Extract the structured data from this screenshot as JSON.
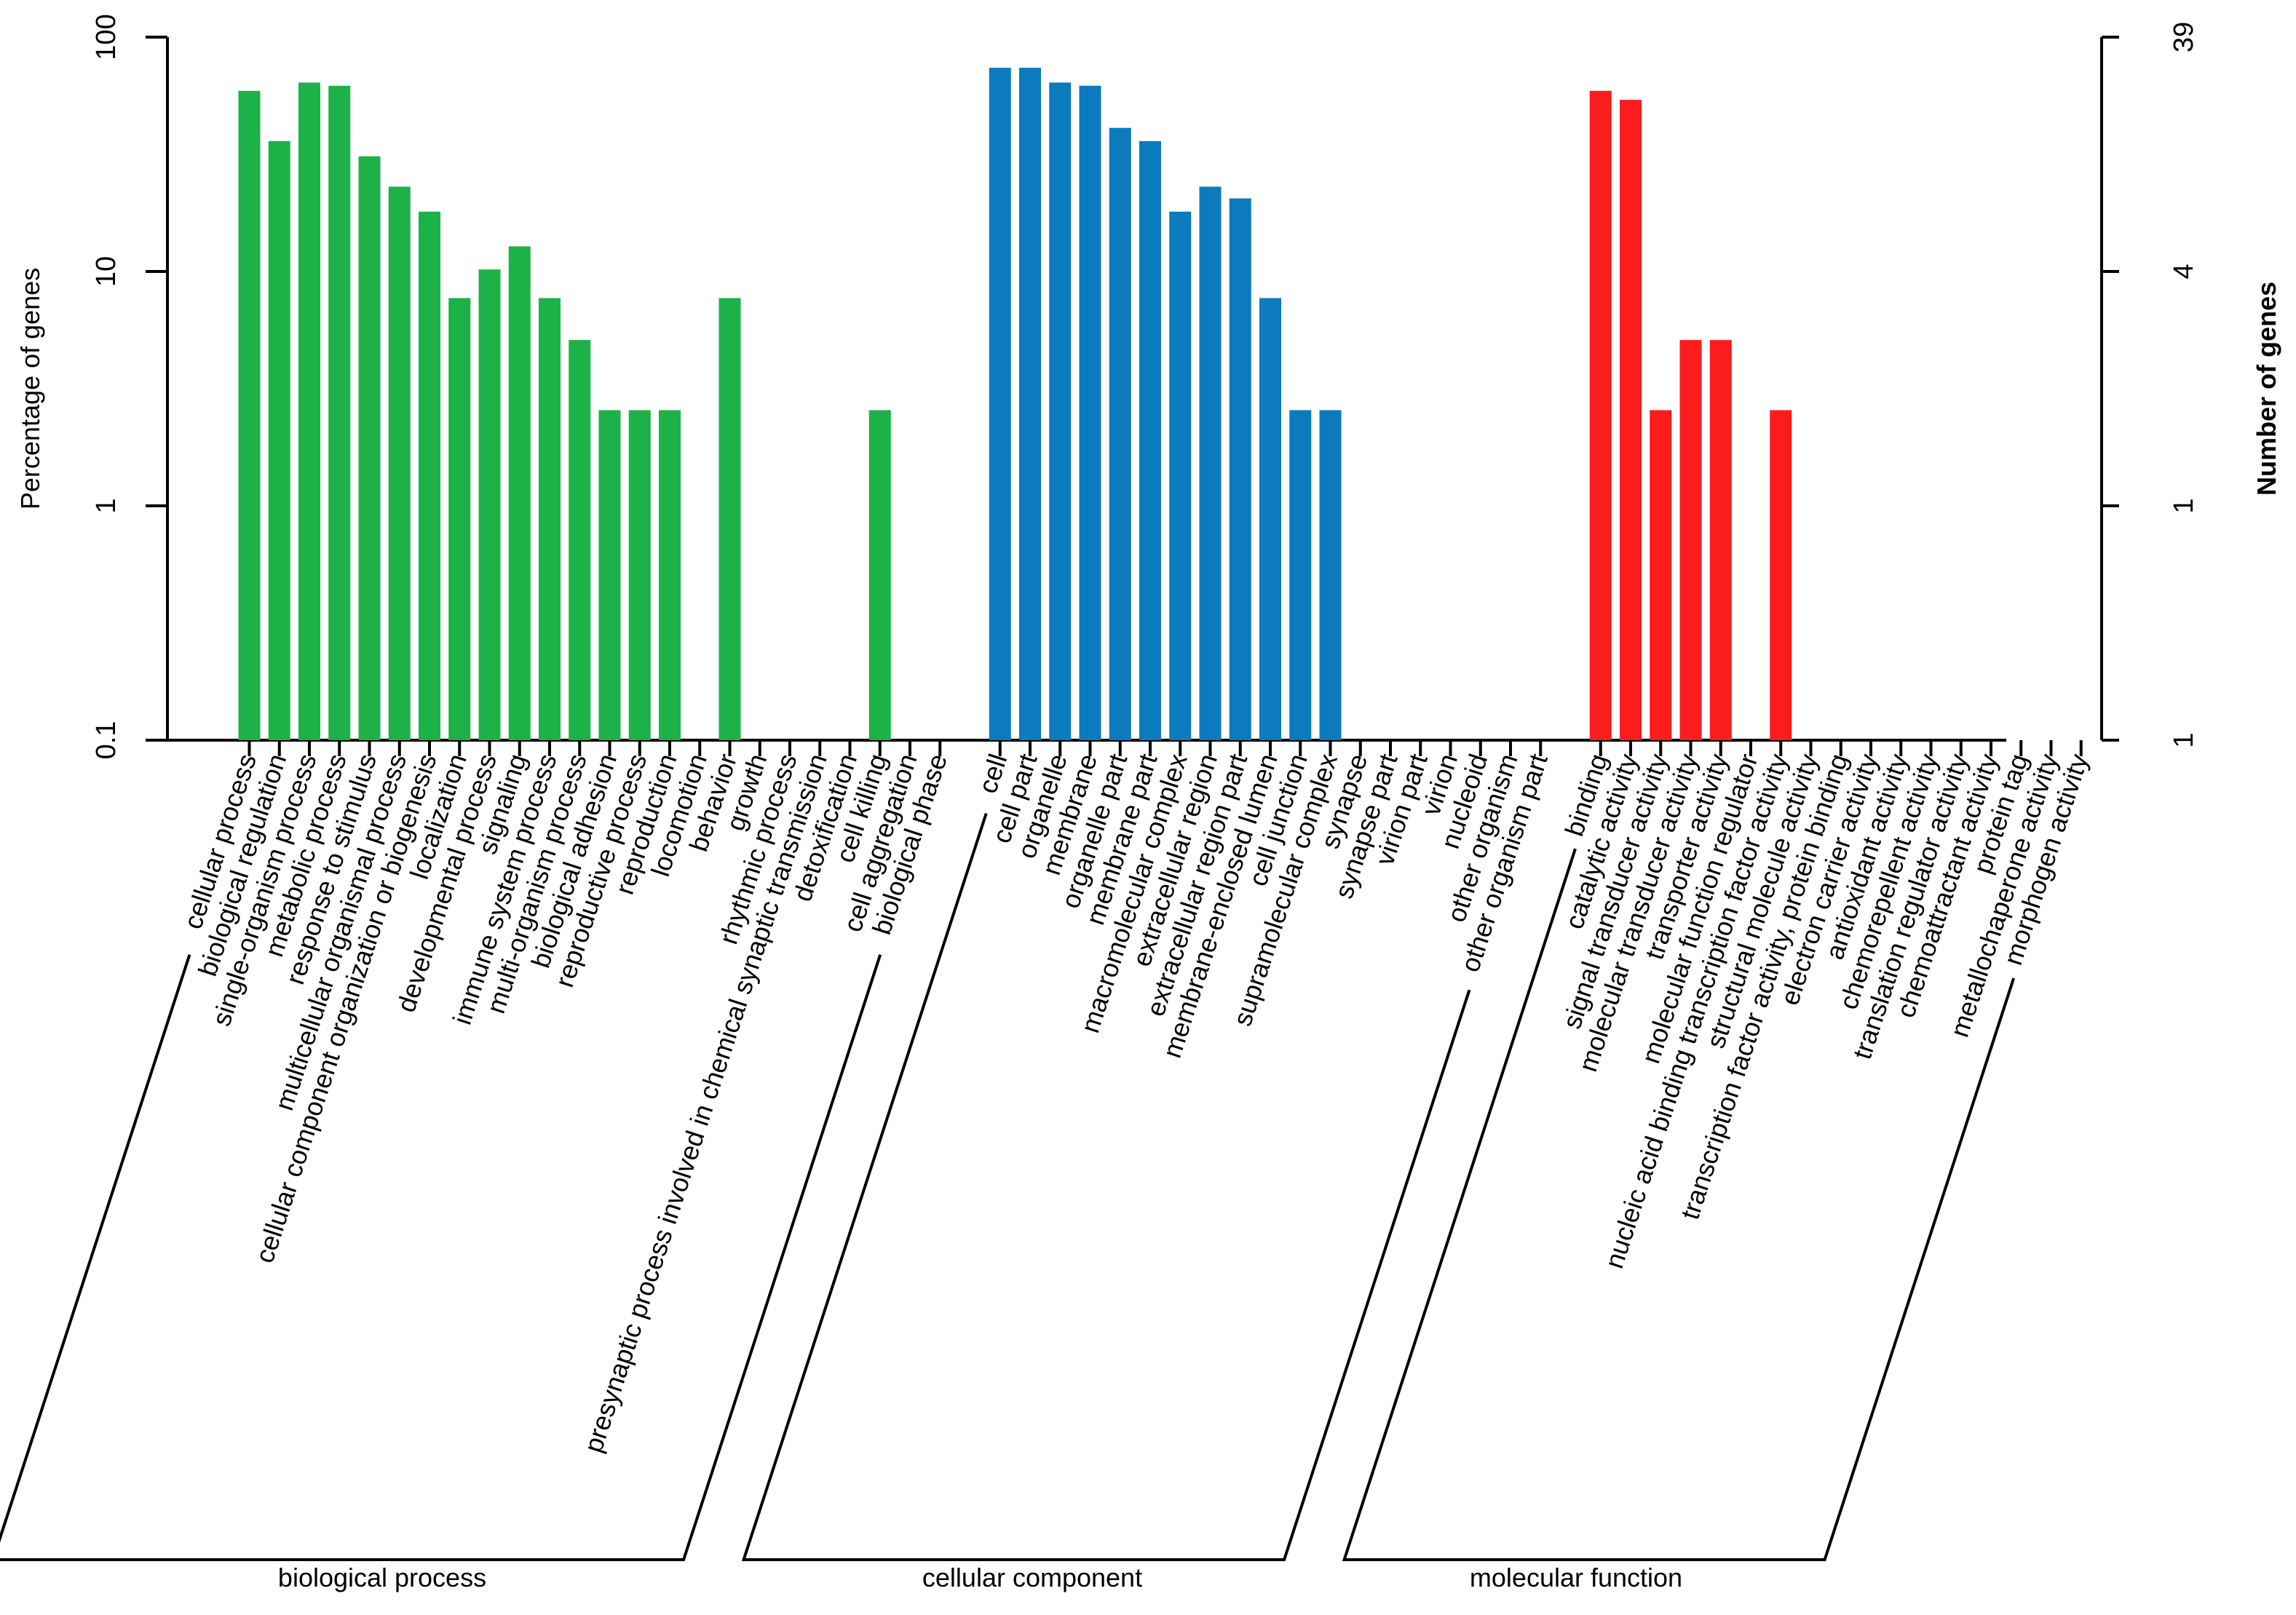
{
  "chart_data": {
    "type": "bar",
    "scale": "log",
    "ylabel": "Percentage of genes",
    "y2label": "Number of genes",
    "ylim": [
      0.1,
      100
    ],
    "yticks": [
      "0.1",
      "1",
      "10",
      "100"
    ],
    "y2ticks": [
      "1",
      "1",
      "4",
      "39"
    ],
    "groups": [
      {
        "name": "biological process",
        "color": "#1cb248",
        "categories": [
          "cellular process",
          "biological regulation",
          "single-organism process",
          "metabolic process",
          "response to stimulus",
          "multicellular organismal process",
          "cellular component organization or biogenesis",
          "localization",
          "developmental process",
          "signaling",
          "immune system process",
          "multi-organism process",
          "biological adhesion",
          "reproductive process",
          "reproduction",
          "locomotion",
          "behavior",
          "growth",
          "rhythmic process",
          "presynaptic process involved in chemical synaptic transmission",
          "detoxification",
          "cell killing",
          "cell aggregation",
          "biological phase"
        ],
        "values": [
          59,
          36,
          64,
          62,
          31,
          23,
          18,
          7.7,
          10.2,
          12.8,
          7.7,
          5.1,
          2.56,
          2.56,
          2.56,
          0,
          7.7,
          0,
          0,
          0,
          0,
          2.56,
          0,
          0
        ]
      },
      {
        "name": "cellular component",
        "color": "#0b7bbd",
        "categories": [
          "cell",
          "cell part",
          "organelle",
          "membrane",
          "organelle part",
          "membrane part",
          "macromolecular complex",
          "extracellular region",
          "extracellular region part",
          "membrane-enclosed lumen",
          "cell junction",
          "supramolecular complex",
          "synapse",
          "synapse part",
          "virion part",
          "virion",
          "nucleoid",
          "other organism",
          "other organism part"
        ],
        "values": [
          74,
          74,
          64,
          62,
          41,
          36,
          18,
          23,
          20.5,
          7.7,
          2.56,
          2.56,
          0,
          0,
          0,
          0,
          0,
          0,
          0
        ]
      },
      {
        "name": "molecular function",
        "color": "#fb1c1e",
        "categories": [
          "binding",
          "catalytic activity",
          "signal transducer activity",
          "molecular transducer activity",
          "transporter activity",
          "molecular function regulator",
          "nucleic acid binding transcription factor activity",
          "structural molecule activity",
          "transcription factor activity, protein binding",
          "electron carrier activity",
          "antioxidant activity",
          "chemorepellent activity",
          "translation regulator activity",
          "chemoattractant activity",
          "protein tag",
          "metallochaperone activity",
          "morphogen activity"
        ],
        "values": [
          59,
          54,
          2.56,
          5.1,
          5.1,
          0,
          2.56,
          0,
          0,
          0,
          0,
          0,
          0,
          0,
          0,
          0,
          0
        ]
      }
    ]
  }
}
